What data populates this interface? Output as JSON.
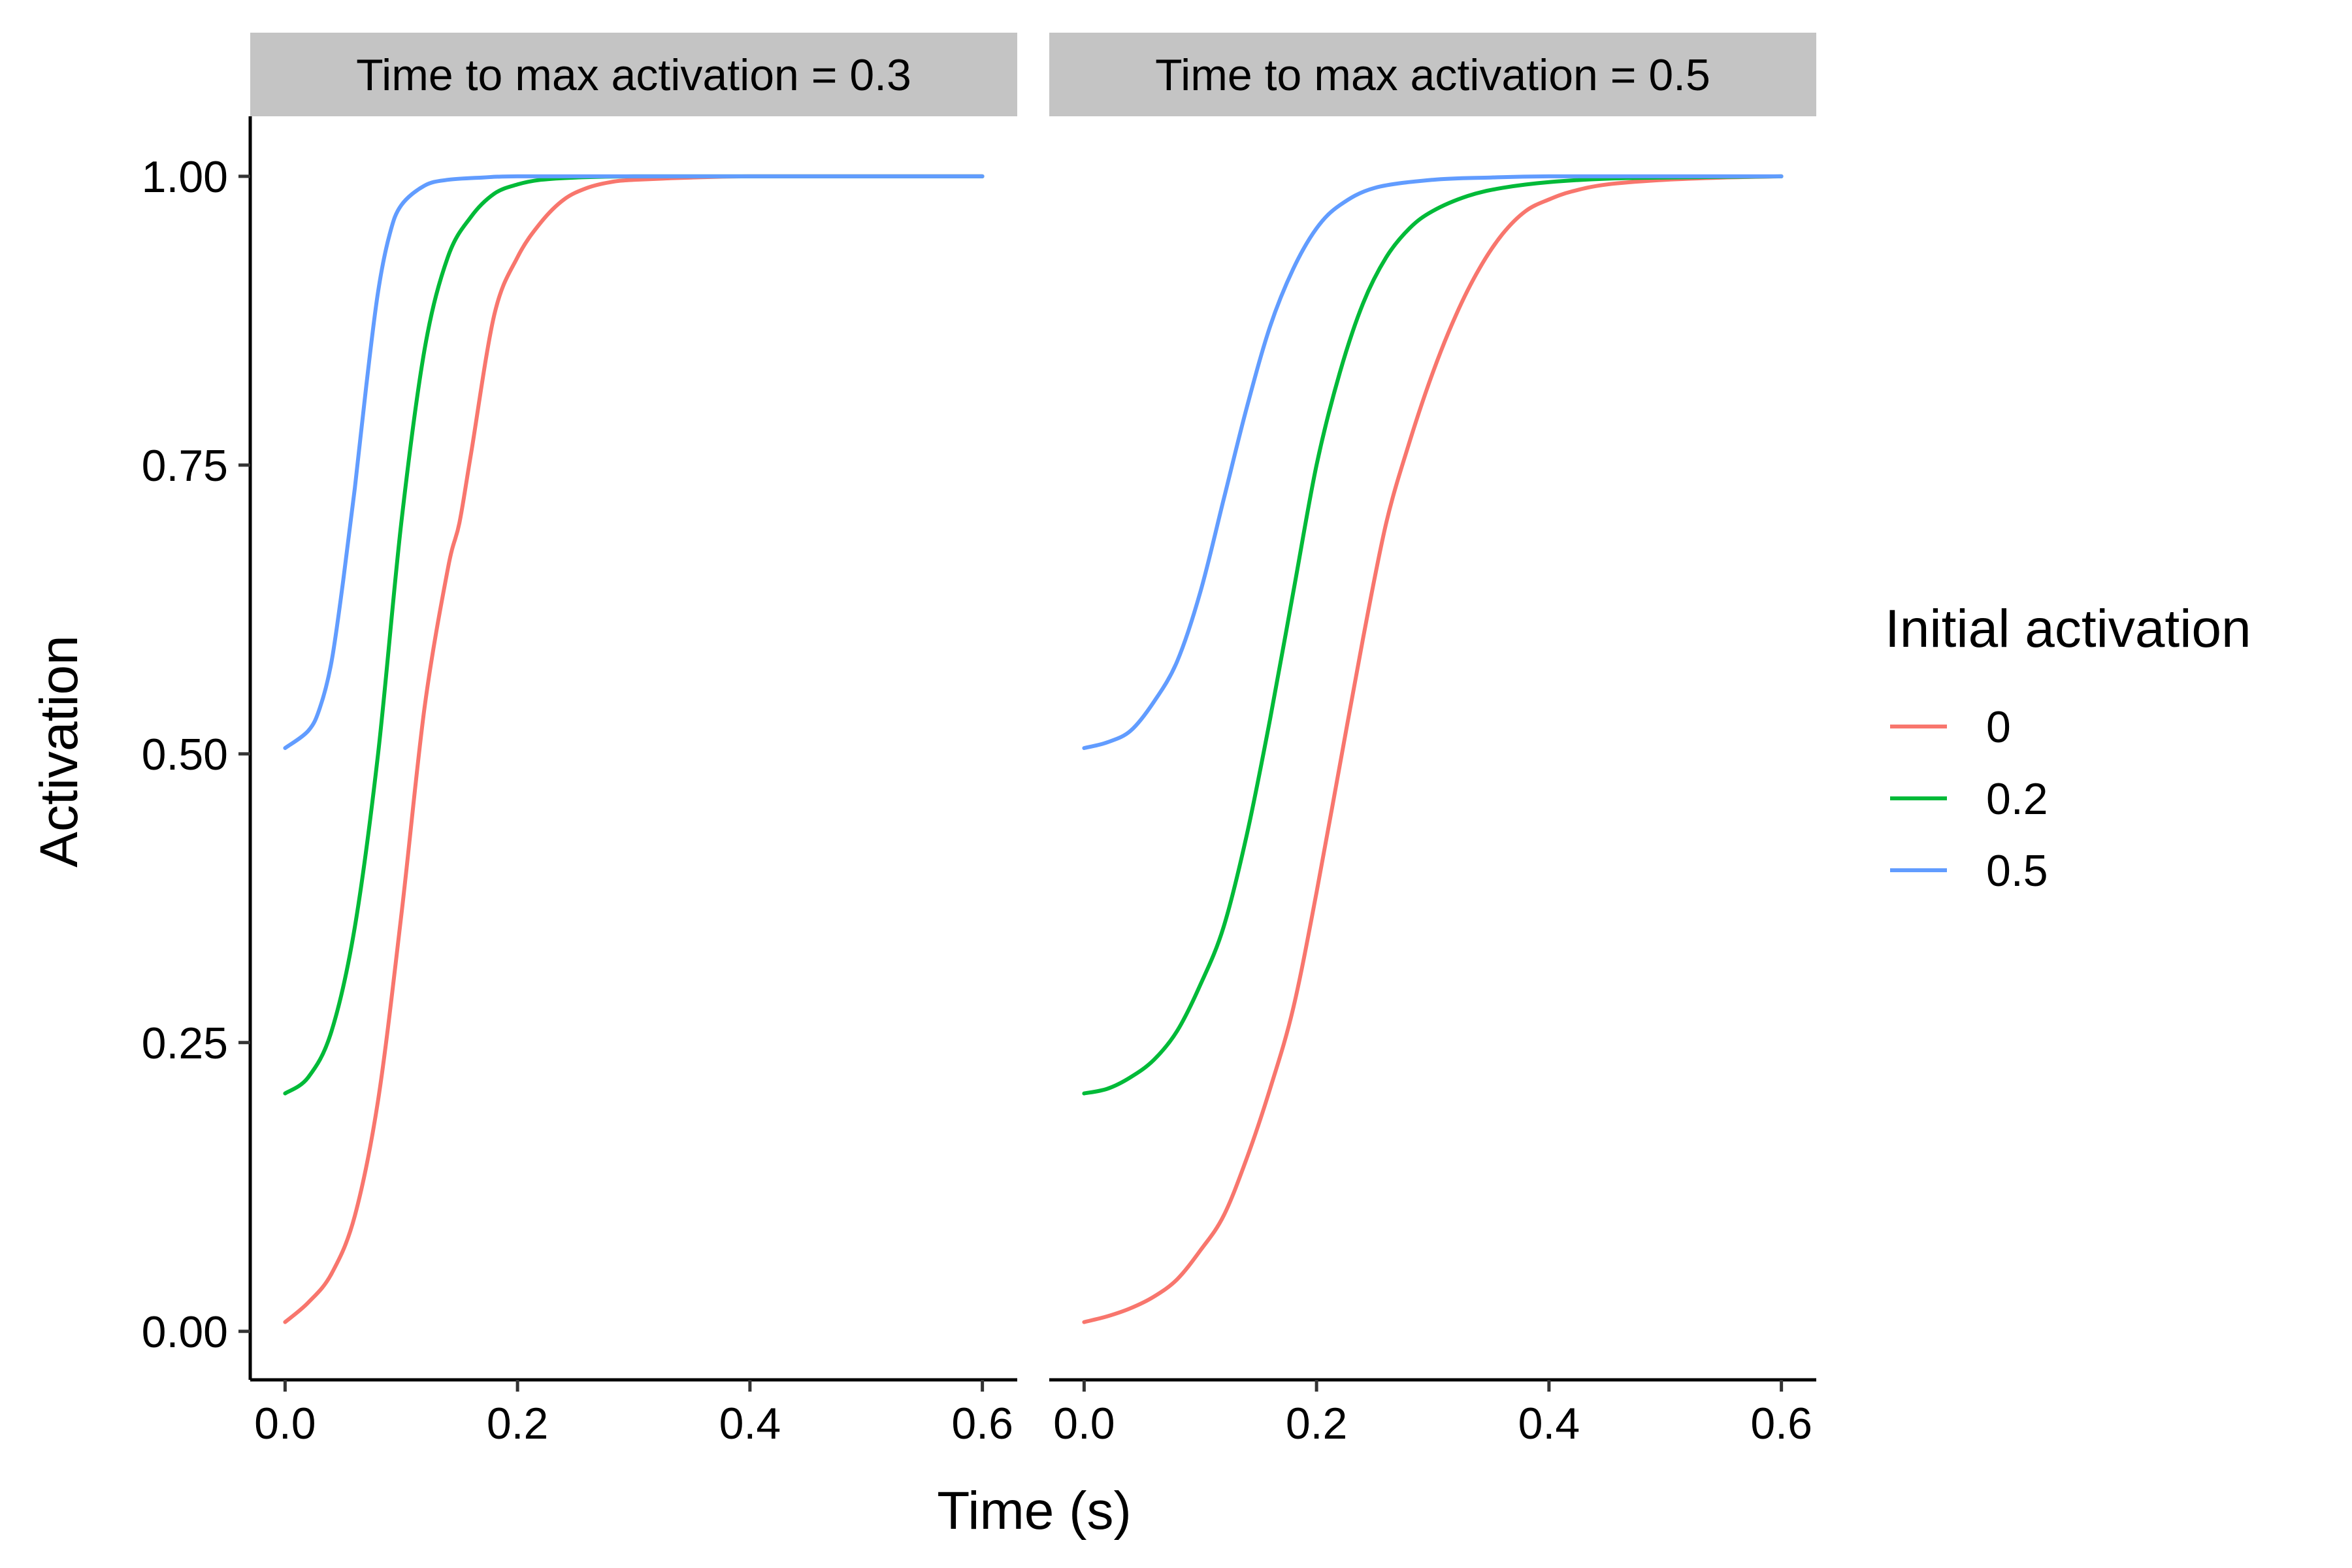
{
  "chart_data": {
    "type": "line",
    "xlabel": "Time (s)",
    "ylabel": "Activation",
    "xlim": [
      -0.03,
      0.63
    ],
    "ylim": [
      -0.042,
      1.052
    ],
    "x_ticks": [
      0.0,
      0.2,
      0.4,
      0.6
    ],
    "x_tick_labels": [
      "0.0",
      "0.2",
      "0.4",
      "0.6"
    ],
    "y_ticks": [
      0.0,
      0.25,
      0.5,
      0.75,
      1.0
    ],
    "y_tick_labels": [
      "0.00",
      "0.25",
      "0.50",
      "0.75",
      "1.00"
    ],
    "grid": false,
    "legend": {
      "title": "Initial activation",
      "placement": "right",
      "entries": [
        {
          "label": "0",
          "color": "#F8766D"
        },
        {
          "label": "0.2",
          "color": "#00BA38"
        },
        {
          "label": "0.5",
          "color": "#619CFF"
        }
      ]
    },
    "panels": [
      {
        "strip": "Time to max activation = 0.3",
        "series": [
          {
            "legend_label": "0",
            "color": "#F8766D",
            "x": [
              0,
              0.02,
              0.04,
              0.06,
              0.08,
              0.1,
              0.12,
              0.14,
              0.15,
              0.16,
              0.18,
              0.2,
              0.22,
              0.24,
              0.26,
              0.28,
              0.3,
              0.35,
              0.4,
              0.5,
              0.6
            ],
            "y": [
              0.008,
              0.025,
              0.05,
              0.1,
              0.2,
              0.36,
              0.54,
              0.66,
              0.7,
              0.76,
              0.88,
              0.93,
              0.96,
              0.98,
              0.99,
              0.995,
              0.997,
              0.999,
              1.0,
              1.0,
              1.0
            ]
          },
          {
            "legend_label": "0.2",
            "color": "#00BA38",
            "x": [
              0,
              0.02,
              0.04,
              0.06,
              0.08,
              0.1,
              0.12,
              0.14,
              0.16,
              0.18,
              0.2,
              0.22,
              0.25,
              0.3,
              0.4,
              0.5,
              0.6
            ],
            "y": [
              0.206,
              0.22,
              0.26,
              0.35,
              0.5,
              0.7,
              0.85,
              0.93,
              0.965,
              0.985,
              0.993,
              0.997,
              0.999,
              1.0,
              1.0,
              1.0,
              1.0
            ]
          },
          {
            "legend_label": "0.5",
            "color": "#619CFF",
            "x": [
              0,
              0.02,
              0.03,
              0.04,
              0.05,
              0.06,
              0.07,
              0.08,
              0.09,
              0.1,
              0.12,
              0.14,
              0.17,
              0.2,
              0.3,
              0.4,
              0.5,
              0.6
            ],
            "y": [
              0.505,
              0.52,
              0.54,
              0.58,
              0.65,
              0.73,
              0.82,
              0.9,
              0.95,
              0.975,
              0.992,
              0.997,
              0.999,
              1.0,
              1.0,
              1.0,
              1.0,
              1.0
            ]
          }
        ]
      },
      {
        "strip": "Time to max activation = 0.5",
        "series": [
          {
            "legend_label": "0",
            "color": "#F8766D",
            "x": [
              0,
              0.02,
              0.04,
              0.06,
              0.08,
              0.1,
              0.12,
              0.14,
              0.16,
              0.18,
              0.2,
              0.22,
              0.24,
              0.26,
              0.28,
              0.3,
              0.32,
              0.34,
              0.36,
              0.38,
              0.4,
              0.42,
              0.45,
              0.5,
              0.55,
              0.6
            ],
            "y": [
              0.008,
              0.013,
              0.02,
              0.03,
              0.045,
              0.07,
              0.1,
              0.15,
              0.21,
              0.28,
              0.38,
              0.49,
              0.6,
              0.7,
              0.77,
              0.83,
              0.88,
              0.92,
              0.95,
              0.97,
              0.98,
              0.987,
              0.993,
              0.997,
              0.999,
              1.0
            ]
          },
          {
            "legend_label": "0.2",
            "color": "#00BA38",
            "x": [
              0,
              0.02,
              0.04,
              0.06,
              0.08,
              0.1,
              0.12,
              0.14,
              0.16,
              0.18,
              0.2,
              0.22,
              0.24,
              0.26,
              0.28,
              0.3,
              0.33,
              0.36,
              0.4,
              0.45,
              0.5,
              0.6
            ],
            "y": [
              0.206,
              0.21,
              0.22,
              0.235,
              0.26,
              0.3,
              0.35,
              0.43,
              0.53,
              0.64,
              0.75,
              0.83,
              0.89,
              0.93,
              0.955,
              0.97,
              0.983,
              0.99,
              0.995,
              0.998,
              0.999,
              1.0
            ]
          },
          {
            "legend_label": "0.5",
            "color": "#619CFF",
            "x": [
              0,
              0.02,
              0.04,
              0.06,
              0.08,
              0.1,
              0.12,
              0.14,
              0.16,
              0.18,
              0.2,
              0.22,
              0.25,
              0.3,
              0.35,
              0.4,
              0.5,
              0.6
            ],
            "y": [
              0.505,
              0.51,
              0.52,
              0.545,
              0.58,
              0.64,
              0.72,
              0.8,
              0.87,
              0.92,
              0.955,
              0.975,
              0.99,
              0.997,
              0.999,
              1.0,
              1.0,
              1.0
            ]
          }
        ]
      }
    ]
  }
}
